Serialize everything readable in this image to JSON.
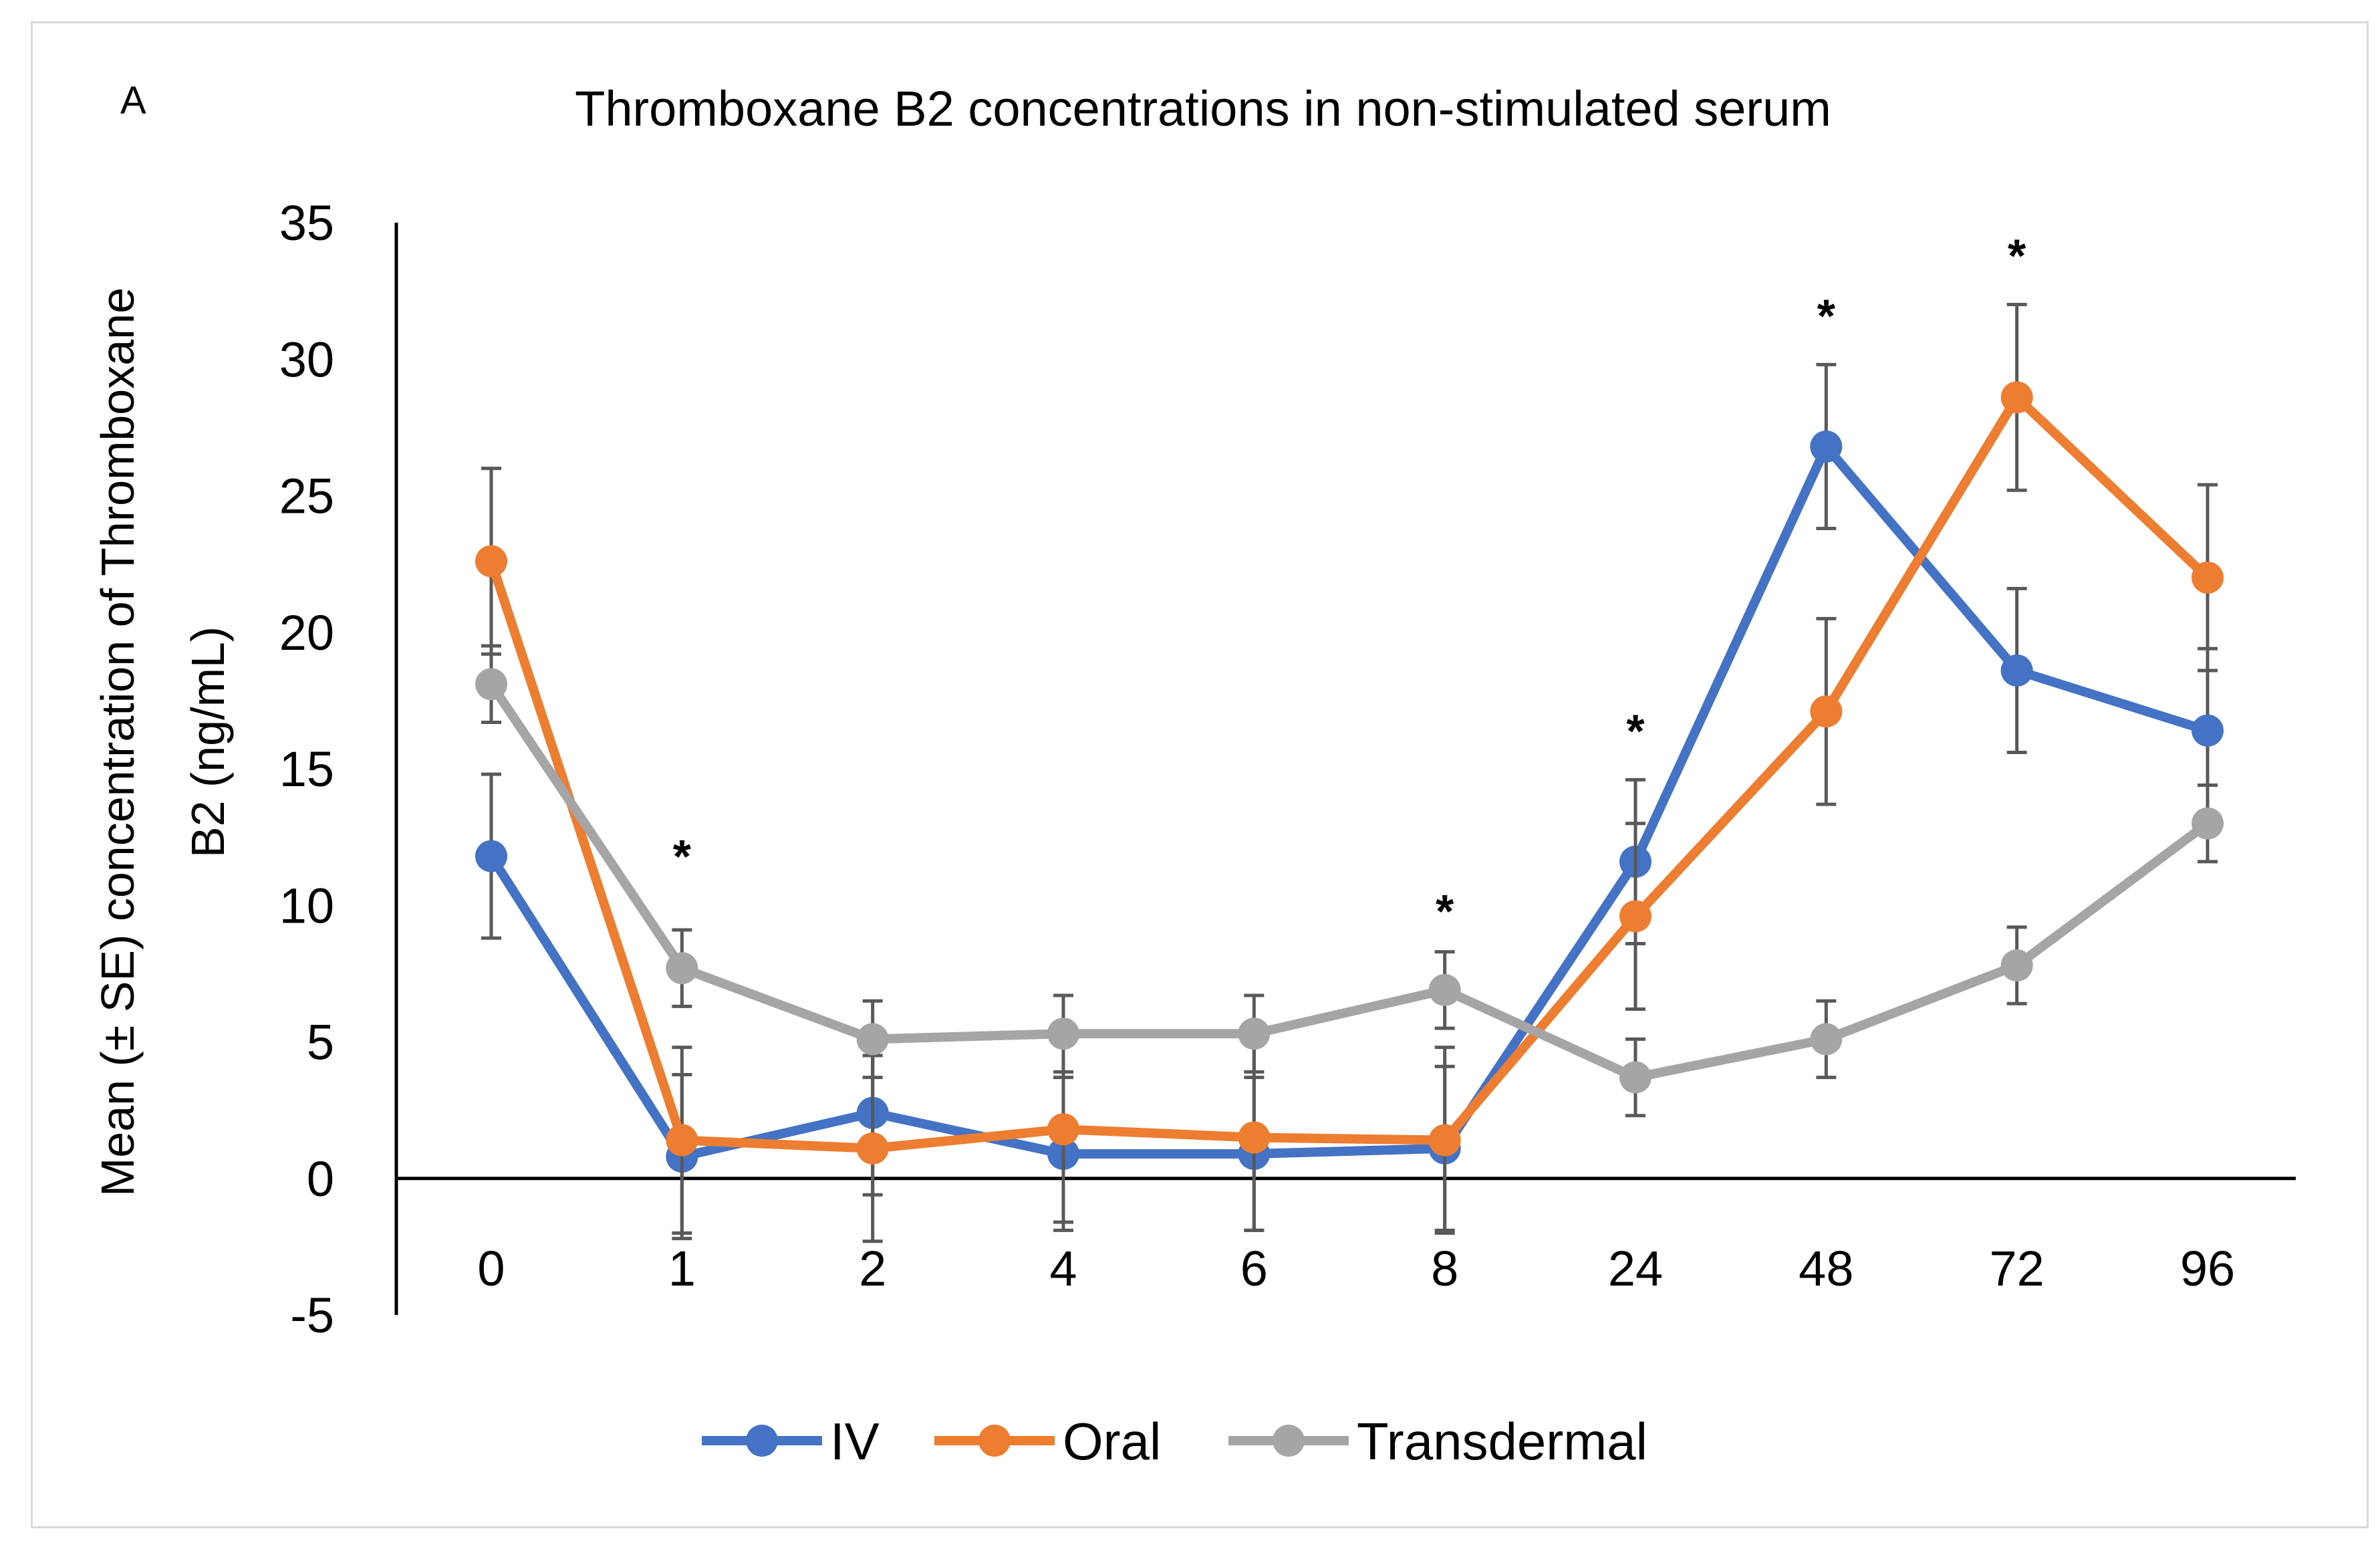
{
  "panel_letter": "A",
  "chart_data": {
    "type": "line",
    "title": "Thromboxane B2 concentrations in non-stimulated serum",
    "xlabel": "",
    "ylabel_lines": [
      "Mean (± SE) concentration of Thromboxane",
      "B2  (ng/mL)"
    ],
    "categories": [
      "0",
      "1",
      "2",
      "4",
      "6",
      "8",
      "24",
      "48",
      "72",
      "96"
    ],
    "ylim": [
      -5,
      35
    ],
    "yticks": [
      35,
      30,
      25,
      20,
      15,
      10,
      5,
      0,
      -5
    ],
    "series": [
      {
        "name": "IV",
        "color": "#4472c4",
        "values": [
          11.8,
          0.8,
          2.4,
          0.9,
          0.9,
          1.1,
          11.6,
          26.8,
          18.6,
          16.4
        ],
        "errors": [
          3.0,
          3.0,
          3.0,
          2.8,
          2.8,
          3.0,
          3.0,
          3.0,
          3.0,
          3.0
        ]
      },
      {
        "name": "Oral",
        "color": "#ed7d31",
        "values": [
          22.6,
          1.4,
          1.1,
          1.8,
          1.5,
          1.4,
          9.6,
          17.1,
          28.6,
          22.0
        ],
        "errors": [
          3.4,
          3.4,
          3.4,
          3.4,
          3.4,
          3.4,
          3.4,
          3.4,
          3.4,
          3.4
        ]
      },
      {
        "name": "Transdermal",
        "color": "#a5a5a5",
        "values": [
          18.1,
          7.7,
          5.1,
          5.3,
          5.3,
          6.9,
          3.7,
          5.1,
          7.8,
          13.0
        ],
        "errors": [
          1.4,
          1.4,
          1.4,
          1.4,
          1.4,
          1.4,
          1.4,
          1.4,
          1.4,
          1.4
        ]
      }
    ],
    "annotations": [
      {
        "category": "1",
        "text": "*",
        "y": 11.2
      },
      {
        "category": "8",
        "text": "*",
        "y": 9.2
      },
      {
        "category": "24",
        "text": "*",
        "y": 15.8
      },
      {
        "category": "48",
        "text": "*",
        "y": 31.0
      },
      {
        "category": "72",
        "text": "*",
        "y": 33.2
      }
    ],
    "legend_position": "bottom-center"
  }
}
